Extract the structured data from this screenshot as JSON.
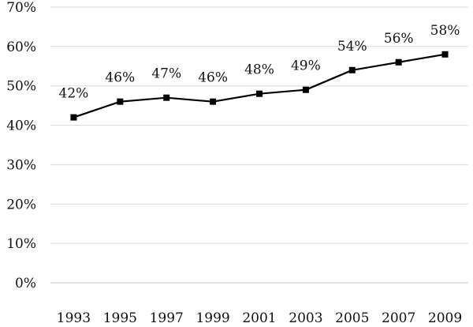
{
  "chart_data": {
    "type": "line",
    "x": [
      "1993",
      "1995",
      "1997",
      "1999",
      "2001",
      "2003",
      "2005",
      "2007",
      "2009"
    ],
    "series": [
      {
        "values": [
          42,
          46,
          47,
          46,
          48,
          49,
          54,
          56,
          58
        ]
      }
    ],
    "data_labels": [
      "42%",
      "46%",
      "47%",
      "46%",
      "48%",
      "49%",
      "54%",
      "56%",
      "58%"
    ],
    "y_ticks": [
      0,
      10,
      20,
      30,
      40,
      50,
      60,
      70
    ],
    "y_tick_labels": [
      "0%",
      "10%",
      "20%",
      "30%",
      "40%",
      "50%",
      "60%",
      "70%"
    ],
    "ylim": [
      0,
      70
    ],
    "grid": true,
    "legend": "none",
    "line_color": "#000000",
    "grid_color": "#d9d9d9",
    "title": "",
    "xlabel": "",
    "ylabel": ""
  }
}
